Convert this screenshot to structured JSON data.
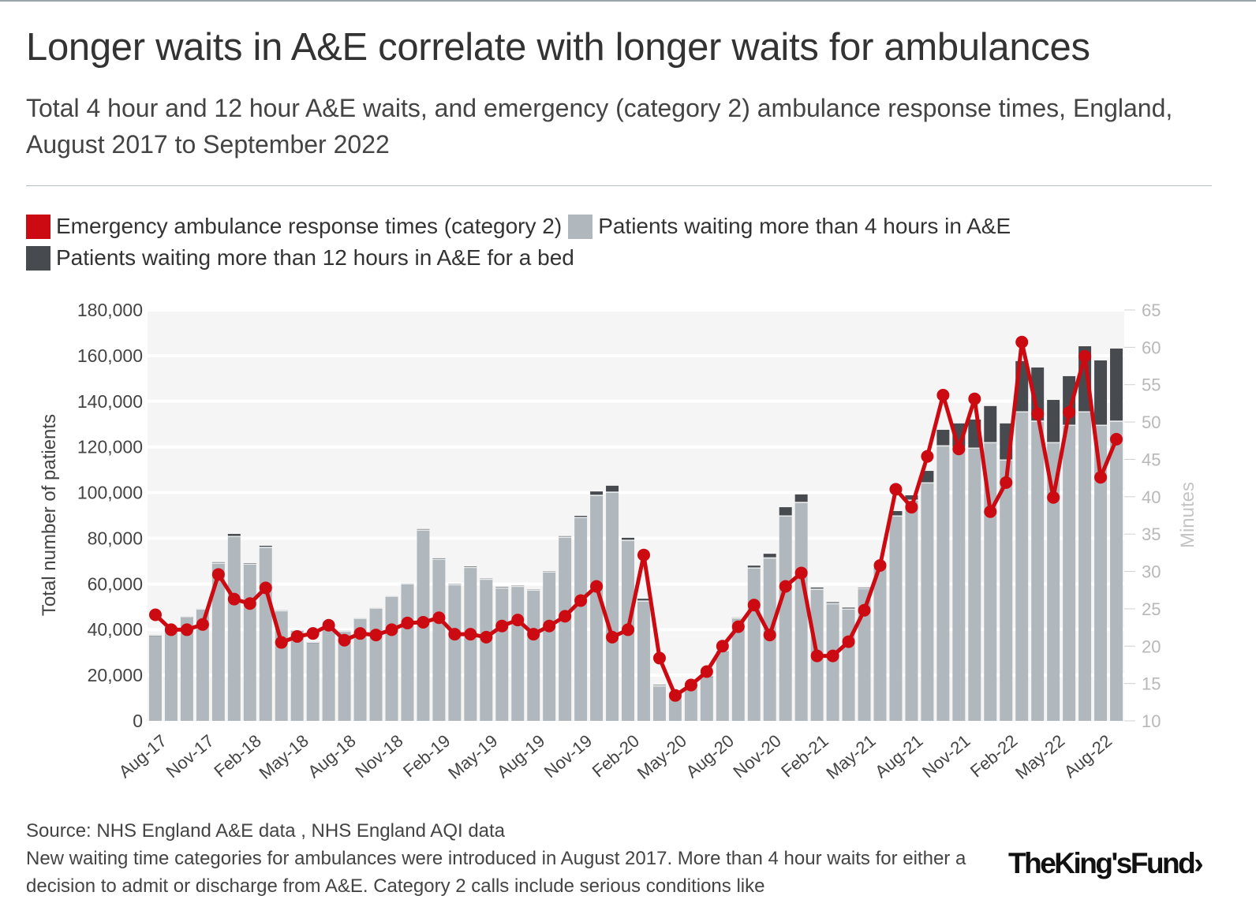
{
  "title": "Longer waits in A&E correlate with longer waits for ambulances",
  "subtitle": "Total 4 hour and 12 hour A&E waits, and emergency (category 2) ambulance response times, England, August 2017 to September 2022",
  "legend": [
    {
      "label": "Emergency ambulance response times (category 2)",
      "color": "#cc0a11"
    },
    {
      "label": "Patients waiting more than 4 hours in A&E",
      "color": "#b0b8bd"
    },
    {
      "label": "Patients waiting more than 12 hours in A&E for a bed",
      "color": "#474a4f"
    }
  ],
  "footer": {
    "source": "Source: NHS England A&E data , NHS England AQI data",
    "note": "New waiting time categories for ambulances were introduced in August 2017. More than 4 hour waits for either a decision to admit or discharge from A&E. Category 2 calls include serious conditions like"
  },
  "logo": "TheKing'sFund",
  "chart_data": {
    "type": "bar+line",
    "stacked": true,
    "ylabel": "Total number of patients",
    "y2label": "Minutes",
    "ylim": [
      0,
      180000
    ],
    "y2lim": [
      10,
      65
    ],
    "y_ticks": [
      "0",
      "20,000",
      "40,000",
      "60,000",
      "80,000",
      "100,000",
      "120,000",
      "140,000",
      "160,000",
      "180,000"
    ],
    "y2_ticks": [
      "10",
      "15",
      "20",
      "25",
      "30",
      "35",
      "40",
      "45",
      "50",
      "55",
      "60",
      "65"
    ],
    "grid": true,
    "legend_position": "top-left",
    "x_range": [
      "Aug-17",
      "Sep-22"
    ],
    "x_tick_labels": [
      "Aug-17",
      "Nov-17",
      "Feb-18",
      "May-18",
      "Aug-18",
      "Nov-18",
      "Feb-19",
      "May-19",
      "Aug-19",
      "Nov-19",
      "Feb-20",
      "May-20",
      "Aug-20",
      "Nov-20",
      "Feb-21",
      "May-21",
      "Aug-21",
      "Nov-21",
      "Feb-22",
      "May-22",
      "Aug-22"
    ],
    "series": [
      {
        "name": "Patients waiting more than 4 hours in A&E",
        "type": "bar",
        "color": "#b0b8bd",
        "values": [
          37300,
          41000,
          45300,
          48700,
          68800,
          80500,
          68400,
          75700,
          48000,
          39400,
          34200,
          40400,
          39000,
          44600,
          49100,
          54300,
          59800,
          83300,
          70500,
          59400,
          67000,
          61800,
          58000,
          58700,
          57000,
          65000,
          80200,
          88800,
          98500,
          99900,
          78800,
          52200,
          15100,
          12000,
          15400,
          19400,
          30300,
          44800,
          66700,
          71100,
          89500,
          95400,
          57400,
          51100,
          48700,
          57700,
          67000,
          89500,
          96400,
          104000,
          120200,
          119500,
          119200,
          121600,
          114000,
          135100,
          131000,
          121600,
          129200,
          135100,
          129200,
          131000
        ]
      },
      {
        "name": "Patients waiting more than 12 hours in A&E for a bed",
        "type": "bar",
        "color": "#474a4f",
        "values": [
          300,
          300,
          300,
          400,
          700,
          1400,
          700,
          1000,
          500,
          300,
          300,
          300,
          500,
          400,
          400,
          400,
          500,
          700,
          700,
          600,
          700,
          600,
          700,
          600,
          600,
          600,
          700,
          1000,
          2000,
          3100,
          1400,
          1300,
          700,
          200,
          200,
          200,
          300,
          500,
          1300,
          2100,
          4100,
          3800,
          1000,
          900,
          900,
          700,
          500,
          2400,
          2400,
          5500,
          7300,
          10800,
          12800,
          16300,
          16300,
          22500,
          23800,
          19000,
          21800,
          29000,
          28700,
          32100
        ]
      },
      {
        "name": "Emergency ambulance response times (category 2)",
        "type": "line",
        "axis": "right",
        "color": "#cc0a11",
        "values": [
          24.2,
          22.2,
          22.2,
          22.9,
          29.6,
          26.3,
          25.7,
          27.8,
          20.5,
          21.3,
          21.7,
          22.8,
          20.8,
          21.7,
          21.5,
          22.2,
          23.1,
          23.2,
          23.8,
          21.6,
          21.6,
          21.2,
          22.7,
          23.5,
          21.6,
          22.7,
          24.0,
          26.1,
          28.0,
          21.2,
          22.2,
          32.2,
          18.4,
          13.4,
          14.8,
          16.6,
          20.0,
          22.6,
          25.5,
          21.5,
          28.0,
          29.8,
          18.7,
          18.7,
          20.6,
          24.8,
          30.8,
          41.0,
          38.6,
          45.4,
          53.6,
          46.4,
          53.1,
          38.0,
          41.9,
          60.7,
          51.1,
          39.9,
          51.3,
          58.8,
          42.6,
          47.7
        ]
      }
    ]
  }
}
